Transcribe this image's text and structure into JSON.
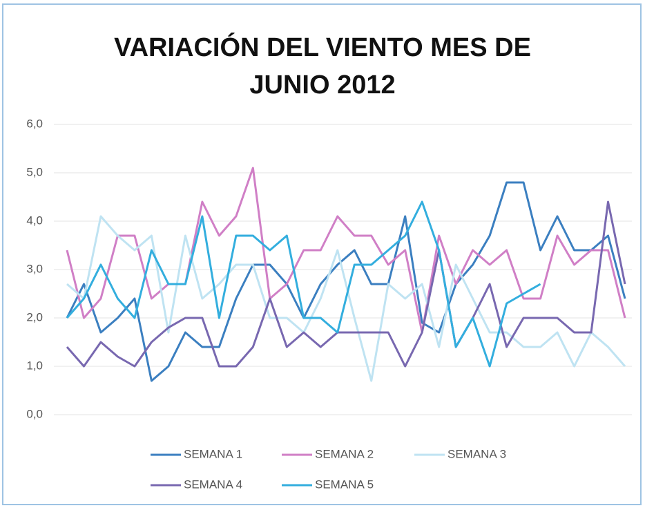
{
  "chart_data": {
    "type": "line",
    "title": "VARIACIÓN DEL VIENTO MES DE JUNIO 2012",
    "categories": [
      null,
      null,
      null,
      null,
      null,
      null,
      null,
      null,
      null,
      null,
      null,
      null,
      null,
      null,
      null,
      null,
      null,
      null,
      null,
      null,
      null,
      null,
      null,
      null,
      null,
      null,
      null,
      null,
      null,
      null,
      null,
      null,
      null,
      null
    ],
    "ylim": [
      0,
      6
    ],
    "yticks": [
      {
        "value": 0,
        "label": "0,0"
      },
      {
        "value": 1,
        "label": "1,0"
      },
      {
        "value": 2,
        "label": "2,0"
      },
      {
        "value": 3,
        "label": "3,0"
      },
      {
        "value": 4,
        "label": "4,0"
      },
      {
        "value": 5,
        "label": "5,0"
      },
      {
        "value": 6,
        "label": "6,0"
      }
    ],
    "grid": true,
    "legend": "bottom",
    "series": [
      {
        "name": "SEMANA 1",
        "color": "#3b7fc0",
        "values": [
          2.0,
          2.7,
          1.7,
          2.0,
          2.4,
          0.7,
          1.0,
          1.7,
          1.4,
          1.4,
          2.4,
          3.1,
          3.1,
          2.7,
          2.0,
          2.7,
          3.1,
          3.4,
          2.7,
          2.7,
          4.1,
          1.9,
          1.7,
          2.7,
          3.1,
          3.7,
          4.8,
          4.8,
          3.4,
          4.1,
          3.4,
          3.4,
          3.7,
          2.4
        ]
      },
      {
        "name": "SEMANA 2",
        "color": "#d07fc6",
        "values": [
          3.4,
          2.0,
          2.4,
          3.7,
          3.7,
          2.4,
          2.7,
          2.7,
          4.4,
          3.7,
          4.1,
          5.1,
          2.4,
          2.7,
          3.4,
          3.4,
          4.1,
          3.7,
          3.7,
          3.1,
          3.4,
          1.7,
          3.7,
          2.7,
          3.4,
          3.1,
          3.4,
          2.4,
          2.4,
          3.7,
          3.1,
          3.4,
          3.4,
          2.0
        ]
      },
      {
        "name": "SEMANA 3",
        "color": "#bfe3f2",
        "values": [
          2.7,
          2.4,
          4.1,
          3.7,
          3.4,
          3.7,
          1.7,
          3.7,
          2.4,
          2.7,
          3.1,
          3.1,
          2.0,
          2.0,
          1.7,
          2.4,
          3.4,
          2.0,
          0.7,
          2.7,
          2.4,
          2.7,
          1.4,
          3.1,
          2.4,
          1.7,
          1.7,
          1.4,
          1.4,
          1.7,
          1.0,
          1.7,
          1.4,
          1.0
        ]
      },
      {
        "name": "SEMANA 4",
        "color": "#7868b0",
        "values": [
          1.4,
          1.0,
          1.5,
          1.2,
          1.0,
          1.5,
          1.8,
          2.0,
          2.0,
          1.0,
          1.0,
          1.4,
          2.4,
          1.4,
          1.7,
          1.4,
          1.7,
          1.7,
          1.7,
          1.7,
          1.0,
          1.7,
          3.4,
          1.4,
          2.0,
          2.7,
          1.4,
          2.0,
          2.0,
          2.0,
          1.7,
          1.7,
          4.4,
          2.7
        ]
      },
      {
        "name": "SEMANA 5",
        "color": "#33aede",
        "values": [
          2.0,
          2.4,
          3.1,
          2.4,
          2.0,
          3.4,
          2.7,
          2.7,
          4.1,
          2.0,
          3.7,
          3.7,
          3.4,
          3.7,
          2.0,
          2.0,
          1.7,
          3.1,
          3.1,
          3.4,
          3.7,
          4.4,
          3.4,
          1.4,
          2.0,
          1.0,
          2.3,
          2.5,
          2.7,
          null,
          null,
          null,
          null,
          null
        ]
      }
    ]
  }
}
